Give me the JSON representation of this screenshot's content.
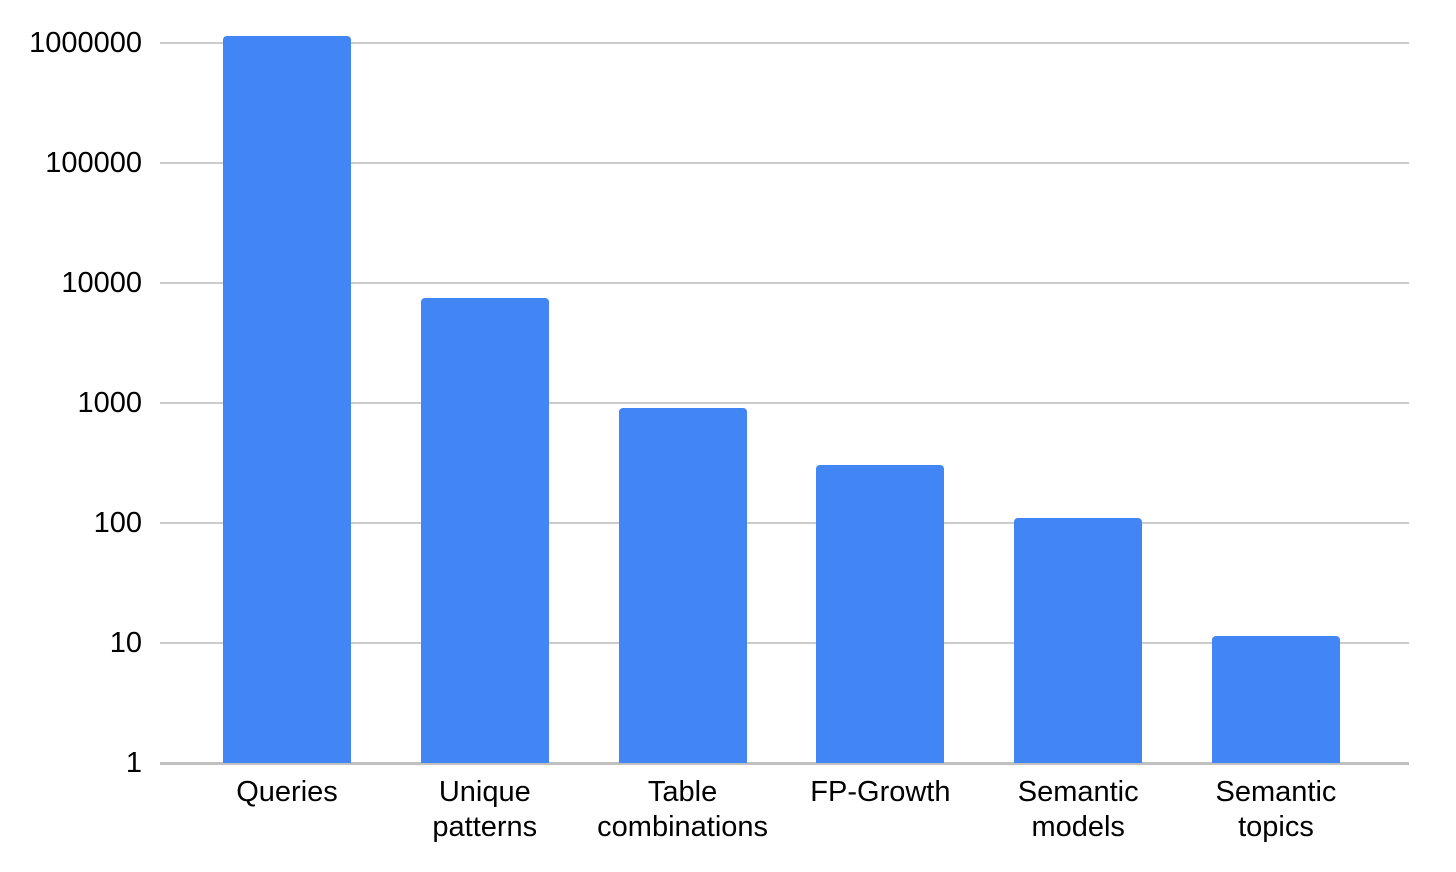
{
  "chart_data": {
    "type": "bar",
    "title": "",
    "y_scale": "log",
    "categories": [
      "Queries",
      "Unique patterns",
      "Table combinations",
      "FP-Growth",
      "Semantic models",
      "Semantic topics"
    ],
    "values": [
      1150000,
      7500,
      900,
      305,
      110,
      11.5
    ],
    "y_ticks": [
      1,
      10,
      100,
      1000,
      10000,
      100000,
      1000000
    ],
    "ylim": [
      1,
      1000000
    ],
    "xlabel": "",
    "ylabel": "",
    "grid": true,
    "legend": "none",
    "colors": {
      "bar": "#4285f4",
      "gridline": "#cccccc",
      "axis_line": "#c0c0c0",
      "text": "#000000",
      "background": "#ffffff"
    }
  }
}
